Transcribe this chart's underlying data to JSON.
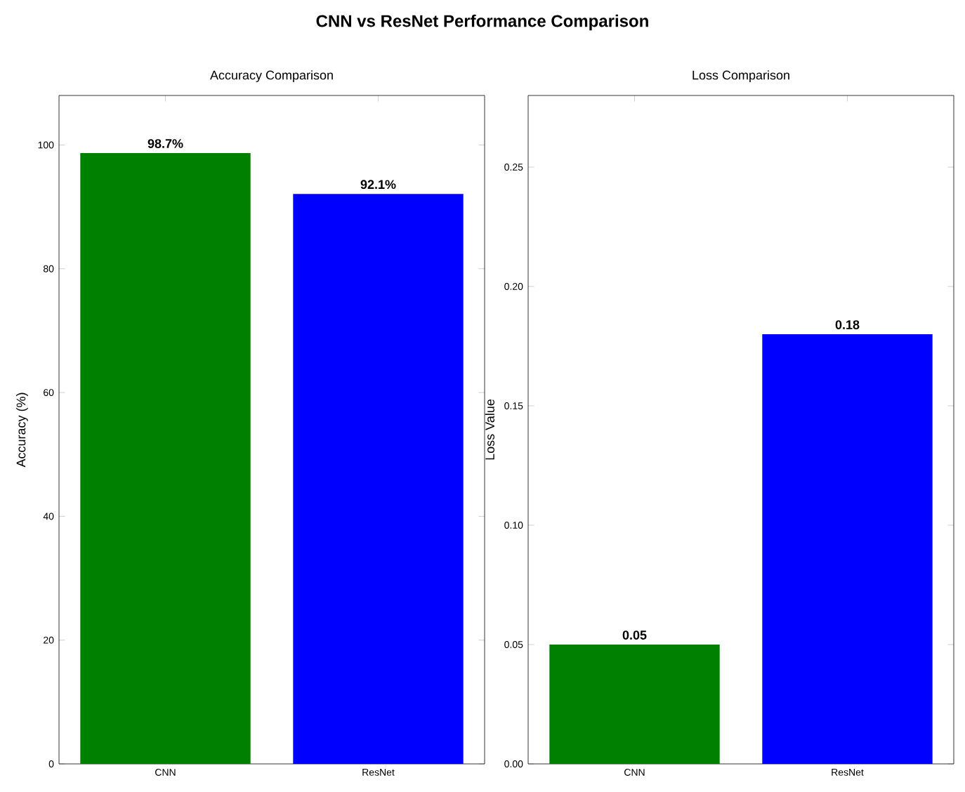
{
  "chart_data": [
    {
      "type": "bar",
      "title": "Accuracy Comparison",
      "ylabel": "Accuracy (%)",
      "annotations": [
        "CNN vs ResNet Performance Comparison"
      ],
      "categories": [
        "CNN",
        "ResNet"
      ],
      "values": [
        98.7,
        92.1
      ],
      "colors": [
        "#008000",
        "#0000ff"
      ],
      "value_labels": [
        "98.7%",
        "92.1%"
      ],
      "ylim": [
        0,
        108
      ],
      "yticks": [
        0,
        20,
        40,
        60,
        80,
        100
      ]
    },
    {
      "type": "bar",
      "title": "Loss Comparison",
      "ylabel": "Loss Value",
      "categories": [
        "CNN",
        "ResNet"
      ],
      "values": [
        0.05,
        0.18
      ],
      "colors": [
        "#008000",
        "#0000ff"
      ],
      "value_labels": [
        "0.05",
        "0.18"
      ],
      "ylim": [
        0,
        0.28
      ],
      "yticks": [
        {
          "value": 0,
          "label": "0.00"
        },
        {
          "value": 0.05,
          "label": "0.05"
        },
        {
          "value": 0.1,
          "label": "0.10"
        },
        {
          "value": 0.15,
          "label": "0.15"
        },
        {
          "value": 0.2,
          "label": "0.20"
        },
        {
          "value": 0.25,
          "label": "0.25"
        }
      ]
    }
  ]
}
